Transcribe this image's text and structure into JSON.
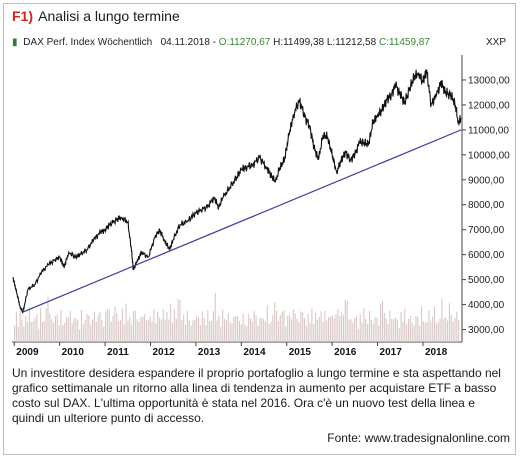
{
  "figure": {
    "badge": "F1)",
    "title": "Analisi a lungo termine"
  },
  "legend": {
    "instrument": "DAX Perf. Index Wöchentlich",
    "date": "04.11.2018",
    "open": "O:11270,67",
    "high": "H:11499,38",
    "low": "L:11212,58",
    "close": "C:11459,87",
    "currency": "XXP"
  },
  "caption": "Un investitore desidera espandere il proprio portafoglio a lungo termine e sta aspettando nel grafico settimanale un ritorno alla linea di tendenza in aumento per acquistare ETF a basso costo sul DAX. L'ultima opportunità è stata nel 2016. Ora c'è un nuovo test della linea e quindi un ulteriore punto di accesso.",
  "source": "Fonte: www.tradesignalonline.com",
  "colors": {
    "price": "#111111",
    "trendline": "#3a3aa0",
    "volume": "#d9c6c6",
    "tick_badge": "#d62020"
  },
  "chart_data": {
    "type": "line",
    "series": [
      {
        "name": "DAX Perf. Index Wöchentlich",
        "x": [
          2008.97,
          2009.05,
          2009.13,
          2009.19,
          2009.3,
          2009.45,
          2009.6,
          2009.75,
          2009.9,
          2010.0,
          2010.1,
          2010.2,
          2010.35,
          2010.45,
          2010.6,
          2010.75,
          2010.9,
          2011.0,
          2011.1,
          2011.25,
          2011.35,
          2011.5,
          2011.58,
          2011.62,
          2011.7,
          2011.8,
          2011.95,
          2012.1,
          2012.2,
          2012.3,
          2012.42,
          2012.5,
          2012.65,
          2012.8,
          2012.95,
          2013.1,
          2013.25,
          2013.4,
          2013.5,
          2013.6,
          2013.75,
          2013.9,
          2014.0,
          2014.1,
          2014.25,
          2014.4,
          2014.55,
          2014.65,
          2014.75,
          2014.85,
          2014.95,
          2015.05,
          2015.15,
          2015.28,
          2015.4,
          2015.5,
          2015.6,
          2015.7,
          2015.8,
          2015.9,
          2016.0,
          2016.1,
          2016.2,
          2016.3,
          2016.4,
          2016.5,
          2016.6,
          2016.7,
          2016.8,
          2016.9,
          2017.0,
          2017.1,
          2017.2,
          2017.3,
          2017.4,
          2017.5,
          2017.6,
          2017.7,
          2017.8,
          2017.9,
          2018.0,
          2018.08,
          2018.18,
          2018.3,
          2018.4,
          2018.5,
          2018.6,
          2018.7,
          2018.78,
          2018.84
        ],
        "values": [
          5100,
          4500,
          3900,
          3700,
          4600,
          4800,
          5300,
          5600,
          5800,
          5900,
          5500,
          6100,
          5900,
          6000,
          6200,
          6600,
          6900,
          7000,
          7200,
          7400,
          7500,
          7300,
          6200,
          5400,
          5700,
          6100,
          5900,
          6700,
          7000,
          6600,
          6200,
          6600,
          7200,
          7300,
          7600,
          7800,
          7900,
          8300,
          7900,
          8300,
          8700,
          9100,
          9400,
          9500,
          9600,
          9900,
          9500,
          9200,
          8900,
          9500,
          9800,
          10800,
          11600,
          12200,
          11500,
          11200,
          10300,
          9800,
          10800,
          10700,
          10000,
          9300,
          9800,
          10100,
          9800,
          10000,
          10500,
          10500,
          10400,
          11300,
          11600,
          11800,
          12200,
          12400,
          12800,
          12400,
          12100,
          12600,
          13100,
          13300,
          12900,
          13400,
          12000,
          12400,
          12900,
          12500,
          12400,
          12100,
          11300,
          11460
        ]
      }
    ],
    "trendline": {
      "x": [
        2009.19,
        2018.84
      ],
      "values": [
        3700,
        11000
      ]
    },
    "x_ticks": [
      "2009",
      "2010",
      "2011",
      "2012",
      "2013",
      "2014",
      "2015",
      "2016",
      "2017",
      "2018"
    ],
    "x_tick_values": [
      2009.0,
      2010.0,
      2011.0,
      2012.0,
      2013.0,
      2014.0,
      2015.0,
      2016.0,
      2017.0,
      2018.0
    ],
    "y_ticks": [
      "3000,00",
      "4000,00",
      "5000,00",
      "6000,00",
      "7000,00",
      "8000,00",
      "9000,00",
      "10000,00",
      "11000,00",
      "12000,00",
      "13000,00"
    ],
    "y_tick_values": [
      3000,
      4000,
      5000,
      6000,
      7000,
      8000,
      9000,
      10000,
      11000,
      12000,
      13000
    ],
    "xlim": [
      2008.95,
      2018.86
    ],
    "ylim": [
      2500,
      14000
    ],
    "volume_scale": [
      0.42,
      0.55,
      0.35,
      0.6,
      0.48,
      0.3,
      0.52,
      0.4,
      0.66,
      0.45,
      0.38,
      0.58,
      0.5,
      0.33,
      0.62,
      0.44,
      0.4,
      0.7,
      0.9,
      0.55,
      0.48,
      0.36,
      0.6,
      0.5,
      0.42,
      0.58,
      0.4,
      0.35,
      0.55,
      0.47,
      0.62,
      0.38,
      0.45,
      0.52,
      0.4,
      0.3,
      0.58,
      0.46,
      0.4,
      0.64,
      0.5,
      0.36,
      0.44,
      0.6,
      0.42,
      0.5,
      0.68,
      0.4,
      0.38,
      0.55,
      0.8,
      0.6,
      0.45,
      0.5,
      0.72,
      0.58,
      0.4,
      0.48,
      0.62,
      0.42,
      0.7,
      0.55,
      0.46,
      0.4,
      0.58,
      0.66,
      0.44,
      0.4,
      0.52,
      0.48,
      0.62,
      0.4,
      0.55,
      0.46,
      0.5,
      0.6,
      0.42,
      0.58,
      0.5,
      0.45,
      0.64,
      0.48,
      0.56,
      0.52,
      0.7,
      0.5,
      0.6,
      0.55,
      0.8,
      0.9
    ]
  }
}
